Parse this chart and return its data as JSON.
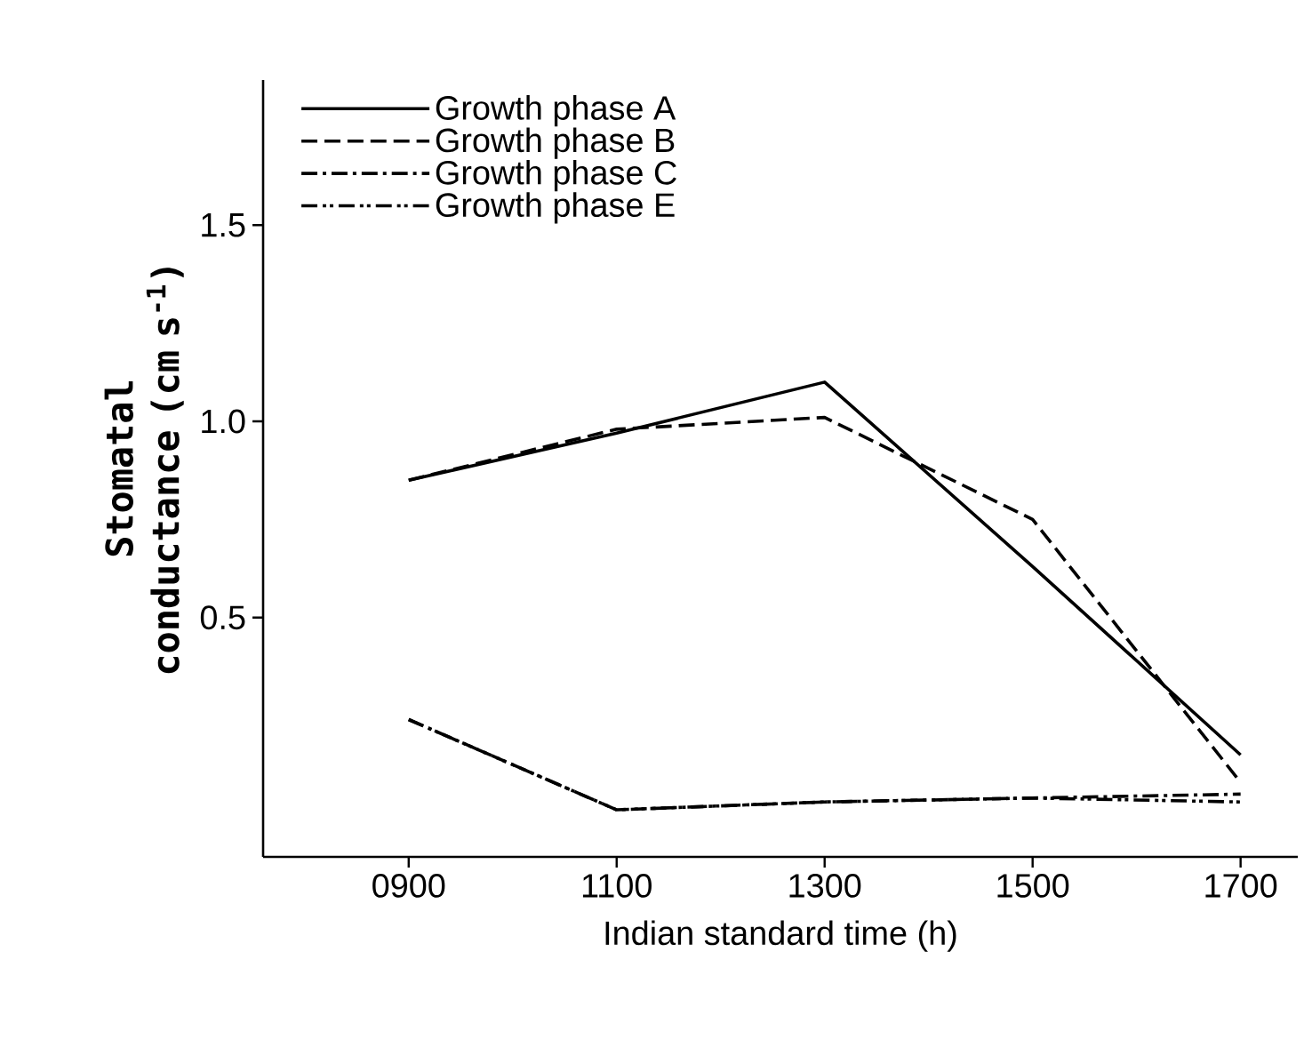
{
  "chart_data": {
    "type": "line",
    "xlabel": "Indian standard time (h)",
    "ylabel": "Stomatal conductance (cm s$^{-1}$)",
    "x": [
      900,
      1100,
      1300,
      1500,
      1700
    ],
    "series": [
      {
        "name": "Growth phase A",
        "color": "#000000",
        "line_style": "solid",
        "values": [
          0.85,
          0.97,
          1.1,
          0.63,
          0.15
        ]
      },
      {
        "name": "Growth phase B",
        "color": "#000000",
        "line_style": "dashed",
        "values": [
          0.85,
          0.98,
          1.01,
          0.75,
          0.08
        ]
      },
      {
        "name": "Growth phase C",
        "color": "#000000",
        "line_style": "dashdot",
        "values": [
          0.24,
          0.01,
          0.03,
          0.04,
          0.05
        ]
      },
      {
        "name": "Growth phase E",
        "color": "#000000",
        "line_style": "dashdotdot",
        "values": [
          0.24,
          0.01,
          0.03,
          0.04,
          0.03
        ]
      }
    ],
    "xlim": [
      760,
      1755
    ],
    "ylim": [
      -0.11,
      1.87
    ],
    "xticks": [
      {
        "value": 900,
        "label": "0900"
      },
      1100,
      1300,
      1500,
      1700
    ],
    "yticks": [
      0.5,
      {
        "value": 1,
        "label": "1.0"
      },
      1.5
    ],
    "legend": "top left",
    "grid": false,
    "marker": "none"
  }
}
